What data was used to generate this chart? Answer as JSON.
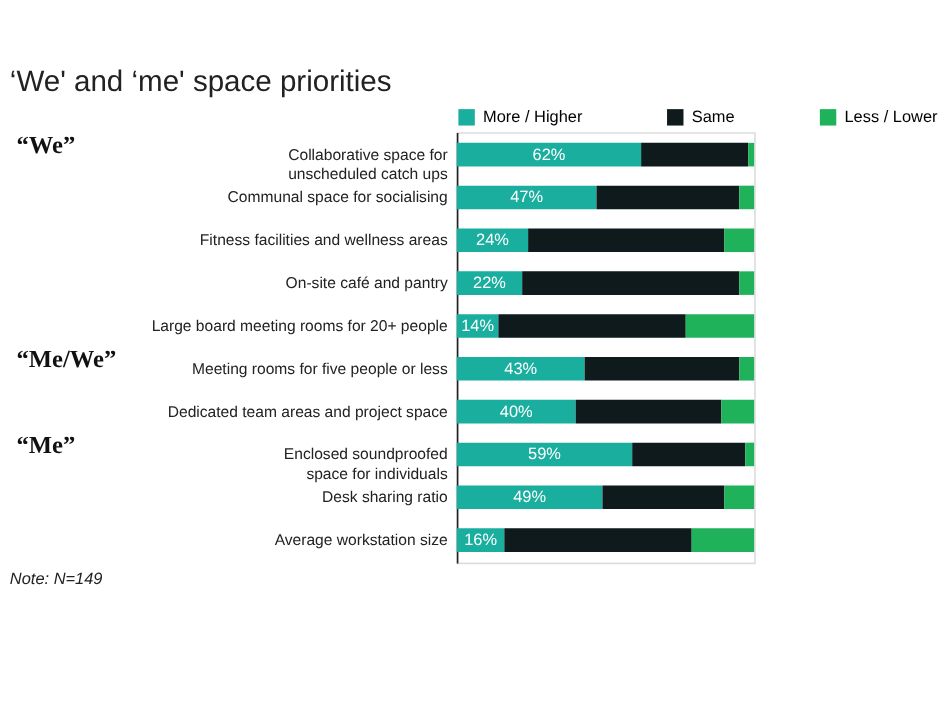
{
  "chart_data": {
    "type": "bar",
    "orientation": "horizontal",
    "stacked": true,
    "title": "‘We' and ‘me' space priorities",
    "categories": [
      "Collaborative space for unscheduled catch ups",
      "Communal space for socialising",
      "Fitness facilities and wellness areas",
      "On-site café and pantry",
      "Large board meeting rooms for 20+ people",
      "Meeting rooms for five people or less",
      "Dedicated team areas and project space",
      "Enclosed soundproofed space for individuals",
      "Desk sharing ratio",
      "Average workstation size"
    ],
    "series": [
      {
        "name": "More / Higher",
        "color": "#1aae9f",
        "values": [
          62,
          47,
          24,
          22,
          14,
          43,
          40,
          59,
          49,
          16
        ],
        "value_labels": [
          "62%",
          "47%",
          "24%",
          "22%",
          "14%",
          "43%",
          "40%",
          "59%",
          "49%",
          "16%"
        ]
      },
      {
        "name": "Same",
        "color": "#0e1a1b",
        "values": [
          36,
          48,
          66,
          73,
          63,
          52,
          49,
          38,
          41,
          63
        ]
      },
      {
        "name": "Less / Lower",
        "color": "#1fb25a",
        "values": [
          2,
          5,
          10,
          5,
          23,
          5,
          11,
          3,
          10,
          21
        ]
      }
    ],
    "xlim": [
      0,
      100
    ],
    "legend": "top",
    "tick_labels": "y",
    "annotations": [
      "“We”",
      "“Me/We”",
      "“Me”",
      "Note: N=149"
    ]
  }
}
